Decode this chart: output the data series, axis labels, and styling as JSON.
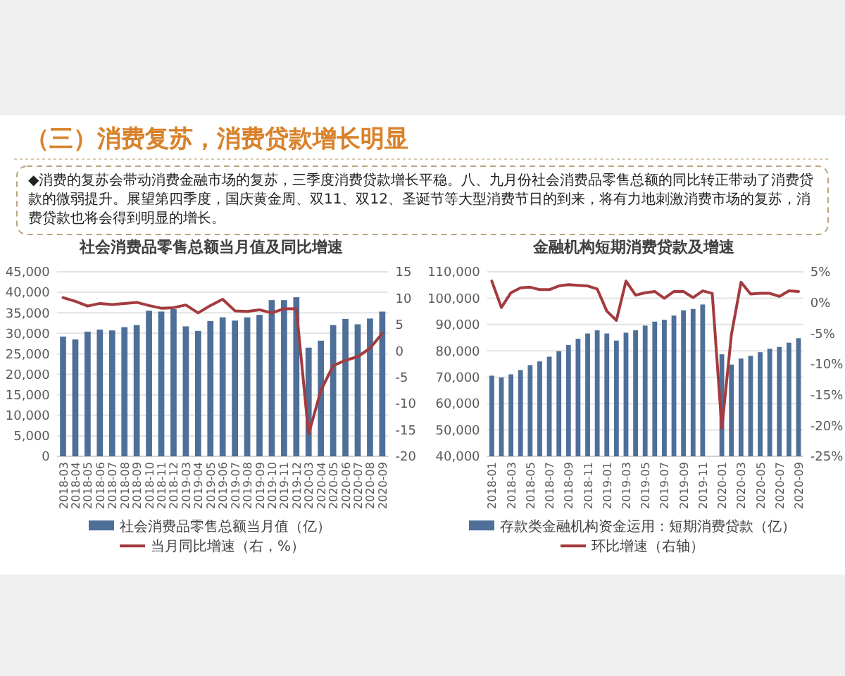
{
  "chart_data": [
    {
      "type": "other",
      "title": "（三）消费复苏，消费贷款增长明显",
      "annotations": [
        "◆消费的复苏会带动消费金融市场的复苏，三季度消费贷款增长平稳。八、九月份社会消费品零售总额的同比转正带动了消费贷款的微弱提升。展望第四季度，国庆黄金周、双11、双12、圣诞节等大型消费节日的到来，将有力地刺激消费市场的复苏，消费贷款也将会得到明显的增长。"
      ]
    },
    {
      "type": "bar",
      "title": "社会消费品零售总额当月值及同比增速",
      "categories": [
        "2018-03",
        "2018-04",
        "2018-05",
        "2018-06",
        "2018-07",
        "2018-08",
        "2018-09",
        "2018-10",
        "2018-11",
        "2018-12",
        "2019-03",
        "2019-04",
        "2019-05",
        "2019-06",
        "2019-07",
        "2019-08",
        "2019-09",
        "2019-10",
        "2019-11",
        "2019-12",
        "2020-03",
        "2020-04",
        "2020-05",
        "2020-06",
        "2020-07",
        "2020-08",
        "2020-09"
      ],
      "series": [
        {
          "name": "社会消费品零售总额当月值（亿）",
          "type": "bar",
          "color": "#4e6f98",
          "values": [
            29200,
            28500,
            30400,
            30900,
            30700,
            31500,
            32000,
            35500,
            35300,
            35900,
            31700,
            30600,
            33000,
            33900,
            33100,
            33900,
            34500,
            38100,
            38100,
            38800,
            26500,
            28200,
            32000,
            33500,
            32200,
            33600,
            35300
          ]
        },
        {
          "name": "当月同比增速（右，%）",
          "type": "line",
          "axis": "y2",
          "color": "#a33b3f",
          "values": [
            10.1,
            9.4,
            8.5,
            9.0,
            8.8,
            9.0,
            9.2,
            8.6,
            8.1,
            8.2,
            8.7,
            7.2,
            8.6,
            9.8,
            7.6,
            7.5,
            7.8,
            7.2,
            8.0,
            8.0,
            -15.8,
            -7.5,
            -2.8,
            -1.8,
            -1.1,
            0.5,
            3.3
          ]
        }
      ],
      "ylim": [
        0,
        45000
      ],
      "yticks": [
        0,
        {
          "value": 5000,
          "label": "5,000"
        },
        {
          "value": 10000,
          "label": "10,000"
        },
        {
          "value": 15000,
          "label": "15,000"
        },
        {
          "value": 20000,
          "label": "20,000"
        },
        {
          "value": 25000,
          "label": "25,000"
        },
        {
          "value": 30000,
          "label": "30,000"
        },
        {
          "value": 35000,
          "label": "35,000"
        },
        {
          "value": 40000,
          "label": "40,000"
        },
        {
          "value": 45000,
          "label": "45,000"
        }
      ],
      "y2lim": [
        -20,
        15
      ],
      "y2ticks": [
        -20,
        -15,
        -10,
        -5,
        0,
        5,
        10,
        15
      ],
      "grid": "y",
      "legend": "bottom"
    },
    {
      "type": "bar",
      "title": "金融机构短期消费贷款及增速",
      "categories": [
        "2018-01",
        null,
        "2018-03",
        null,
        "2018-05",
        null,
        "2018-07",
        null,
        "2018-09",
        null,
        "2018-11",
        null,
        "2019-01",
        null,
        "2019-03",
        null,
        "2019-05",
        null,
        "2019-07",
        null,
        "2019-09",
        null,
        "2019-11",
        null,
        "2020-01",
        null,
        "2020-03",
        null,
        "2020-05",
        null,
        "2020-07",
        null,
        "2020-09"
      ],
      "series": [
        {
          "name": "存款类金融机构资金运用：短期消费贷款（亿）",
          "type": "bar",
          "color": "#4e6f98",
          "values": [
            70600,
            69900,
            71100,
            72700,
            74600,
            76000,
            77800,
            79900,
            82200,
            84600,
            86600,
            87800,
            86600,
            83900,
            86900,
            87800,
            89600,
            91100,
            91800,
            93400,
            95400,
            95900,
            97600,
            null,
            78700,
            74800,
            77100,
            78100,
            79500,
            80800,
            81500,
            83100,
            84800
          ]
        },
        {
          "name": "环比增速（右轴）",
          "type": "line",
          "axis": "y2",
          "color": "#a33b3f",
          "values": [
            3.5,
            -0.8,
            1.6,
            2.4,
            2.5,
            2.1,
            2.1,
            2.7,
            2.9,
            2.8,
            2.7,
            2.2,
            -1.4,
            -2.9,
            3.5,
            1.2,
            1.6,
            1.8,
            0.7,
            1.8,
            1.8,
            0.8,
            1.9,
            1.5,
            -20.4,
            -5.2,
            3.3,
            1.4,
            1.5,
            1.5,
            1.0,
            1.9,
            1.8
          ]
        }
      ],
      "ylim": [
        40000,
        110000
      ],
      "yticks": [
        {
          "value": 40000,
          "label": "40,000"
        },
        {
          "value": 50000,
          "label": "50,000"
        },
        {
          "value": 60000,
          "label": "60,000"
        },
        {
          "value": 70000,
          "label": "70,000"
        },
        {
          "value": 80000,
          "label": "80,000"
        },
        {
          "value": 90000,
          "label": "90,000"
        },
        {
          "value": 100000,
          "label": "100,000"
        },
        {
          "value": 110000,
          "label": "110,000"
        }
      ],
      "y2lim": [
        -25,
        5
      ],
      "y2ticks": [
        {
          "value": -25,
          "label": "-25%"
        },
        {
          "value": -20,
          "label": "-20%"
        },
        {
          "value": -15,
          "label": "-15%"
        },
        {
          "value": -10,
          "label": "-10%"
        },
        {
          "value": -5,
          "label": "-5%"
        },
        {
          "value": 0,
          "label": "0%"
        },
        {
          "value": 5,
          "label": "5%"
        }
      ],
      "grid": "y",
      "legend": "bottom"
    }
  ]
}
